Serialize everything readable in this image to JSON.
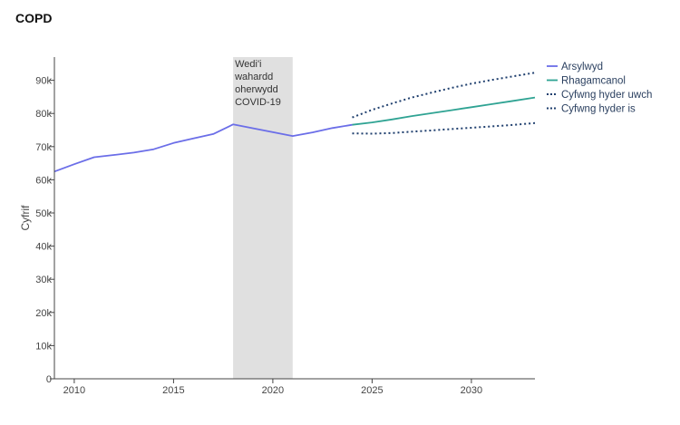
{
  "chart_data": {
    "type": "line",
    "title": "COPD",
    "xlabel": "",
    "ylabel": "Cyfrif",
    "xlim": [
      2009,
      2033.2
    ],
    "ylim": [
      0,
      97000
    ],
    "x_ticks": [
      2010,
      2015,
      2020,
      2025,
      2030
    ],
    "x_tick_labels": [
      "2010",
      "2015",
      "2020",
      "2025",
      "2030"
    ],
    "y_ticks": [
      0,
      10000,
      20000,
      30000,
      40000,
      50000,
      60000,
      70000,
      80000,
      90000
    ],
    "y_tick_labels": [
      "0",
      "10k",
      "20k",
      "30k",
      "40k",
      "50k",
      "60k",
      "70k",
      "80k",
      "90k"
    ],
    "grid": false,
    "legend_position": "right",
    "shaded_region": {
      "x_start": 2018,
      "x_end": 2021,
      "label_lines": [
        "Wedi'i",
        "wahardd",
        "oherwydd",
        "COVID-19"
      ],
      "color": "#e0e0e0"
    },
    "series": [
      {
        "name": "Arsylwyd",
        "style": "solid",
        "color": "#6b6ee8",
        "x": [
          2009,
          2010,
          2011,
          2012,
          2013,
          2014,
          2015,
          2016,
          2017,
          2018,
          2021,
          2022,
          2023,
          2024
        ],
        "y": [
          62500,
          64700,
          66800,
          67500,
          68200,
          69200,
          71100,
          72500,
          73800,
          76700,
          73200,
          74300,
          75600,
          76600
        ]
      },
      {
        "name": "Rhagamcanol",
        "style": "solid",
        "color": "#2fa393",
        "x": [
          2024,
          2025,
          2026,
          2027,
          2028,
          2029,
          2030,
          2031,
          2032,
          2033.2
        ],
        "y": [
          76600,
          77300,
          78200,
          79200,
          80100,
          81000,
          81900,
          82800,
          83700,
          84800
        ]
      },
      {
        "name": "Cyfwng hyder uwch",
        "style": "dotted",
        "color": "#1f3f6e",
        "x": [
          2024,
          2025,
          2026,
          2027,
          2028,
          2029,
          2030,
          2031,
          2032,
          2033.2
        ],
        "y": [
          78800,
          81100,
          83000,
          84800,
          86300,
          87700,
          89000,
          90100,
          91100,
          92300
        ]
      },
      {
        "name": "Cyfwng hyder is",
        "style": "dotted",
        "color": "#1f3f6e",
        "x": [
          2024,
          2025,
          2026,
          2027,
          2028,
          2029,
          2030,
          2031,
          2032,
          2033.2
        ],
        "y": [
          74000,
          73900,
          74100,
          74500,
          74900,
          75300,
          75700,
          76100,
          76500,
          77100
        ]
      }
    ]
  }
}
